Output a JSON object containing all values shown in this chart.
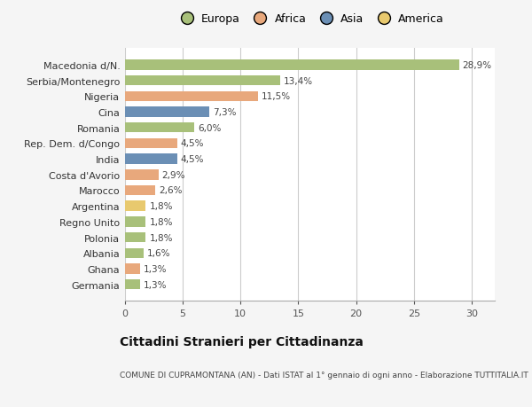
{
  "categories": [
    "Macedonia d/N.",
    "Serbia/Montenegro",
    "Nigeria",
    "Cina",
    "Romania",
    "Rep. Dem. d/Congo",
    "India",
    "Costa d'Avorio",
    "Marocco",
    "Argentina",
    "Regno Unito",
    "Polonia",
    "Albania",
    "Ghana",
    "Germania"
  ],
  "values": [
    28.9,
    13.4,
    11.5,
    7.3,
    6.0,
    4.5,
    4.5,
    2.9,
    2.6,
    1.8,
    1.8,
    1.8,
    1.6,
    1.3,
    1.3
  ],
  "labels": [
    "28,9%",
    "13,4%",
    "11,5%",
    "7,3%",
    "6,0%",
    "4,5%",
    "4,5%",
    "2,9%",
    "2,6%",
    "1,8%",
    "1,8%",
    "1,8%",
    "1,6%",
    "1,3%",
    "1,3%"
  ],
  "colors": [
    "#a8c07a",
    "#a8c07a",
    "#e8a87c",
    "#6b8fb5",
    "#a8c07a",
    "#e8a87c",
    "#6b8fb5",
    "#e8a87c",
    "#e8a87c",
    "#e8c96e",
    "#a8c07a",
    "#a8c07a",
    "#a8c07a",
    "#e8a87c",
    "#a8c07a"
  ],
  "continent_colors": {
    "Europa": "#a8c07a",
    "Africa": "#e8a87c",
    "Asia": "#6b8fb5",
    "America": "#e8c96e"
  },
  "xlim": [
    0,
    32
  ],
  "xticks": [
    0,
    5,
    10,
    15,
    20,
    25,
    30
  ],
  "title": "Cittadini Stranieri per Cittadinanza",
  "subtitle": "COMUNE DI CUPRAMONTANA (AN) - Dati ISTAT al 1° gennaio di ogni anno - Elaborazione TUTTITALIA.IT",
  "background_color": "#f5f5f5",
  "bar_background": "#ffffff"
}
